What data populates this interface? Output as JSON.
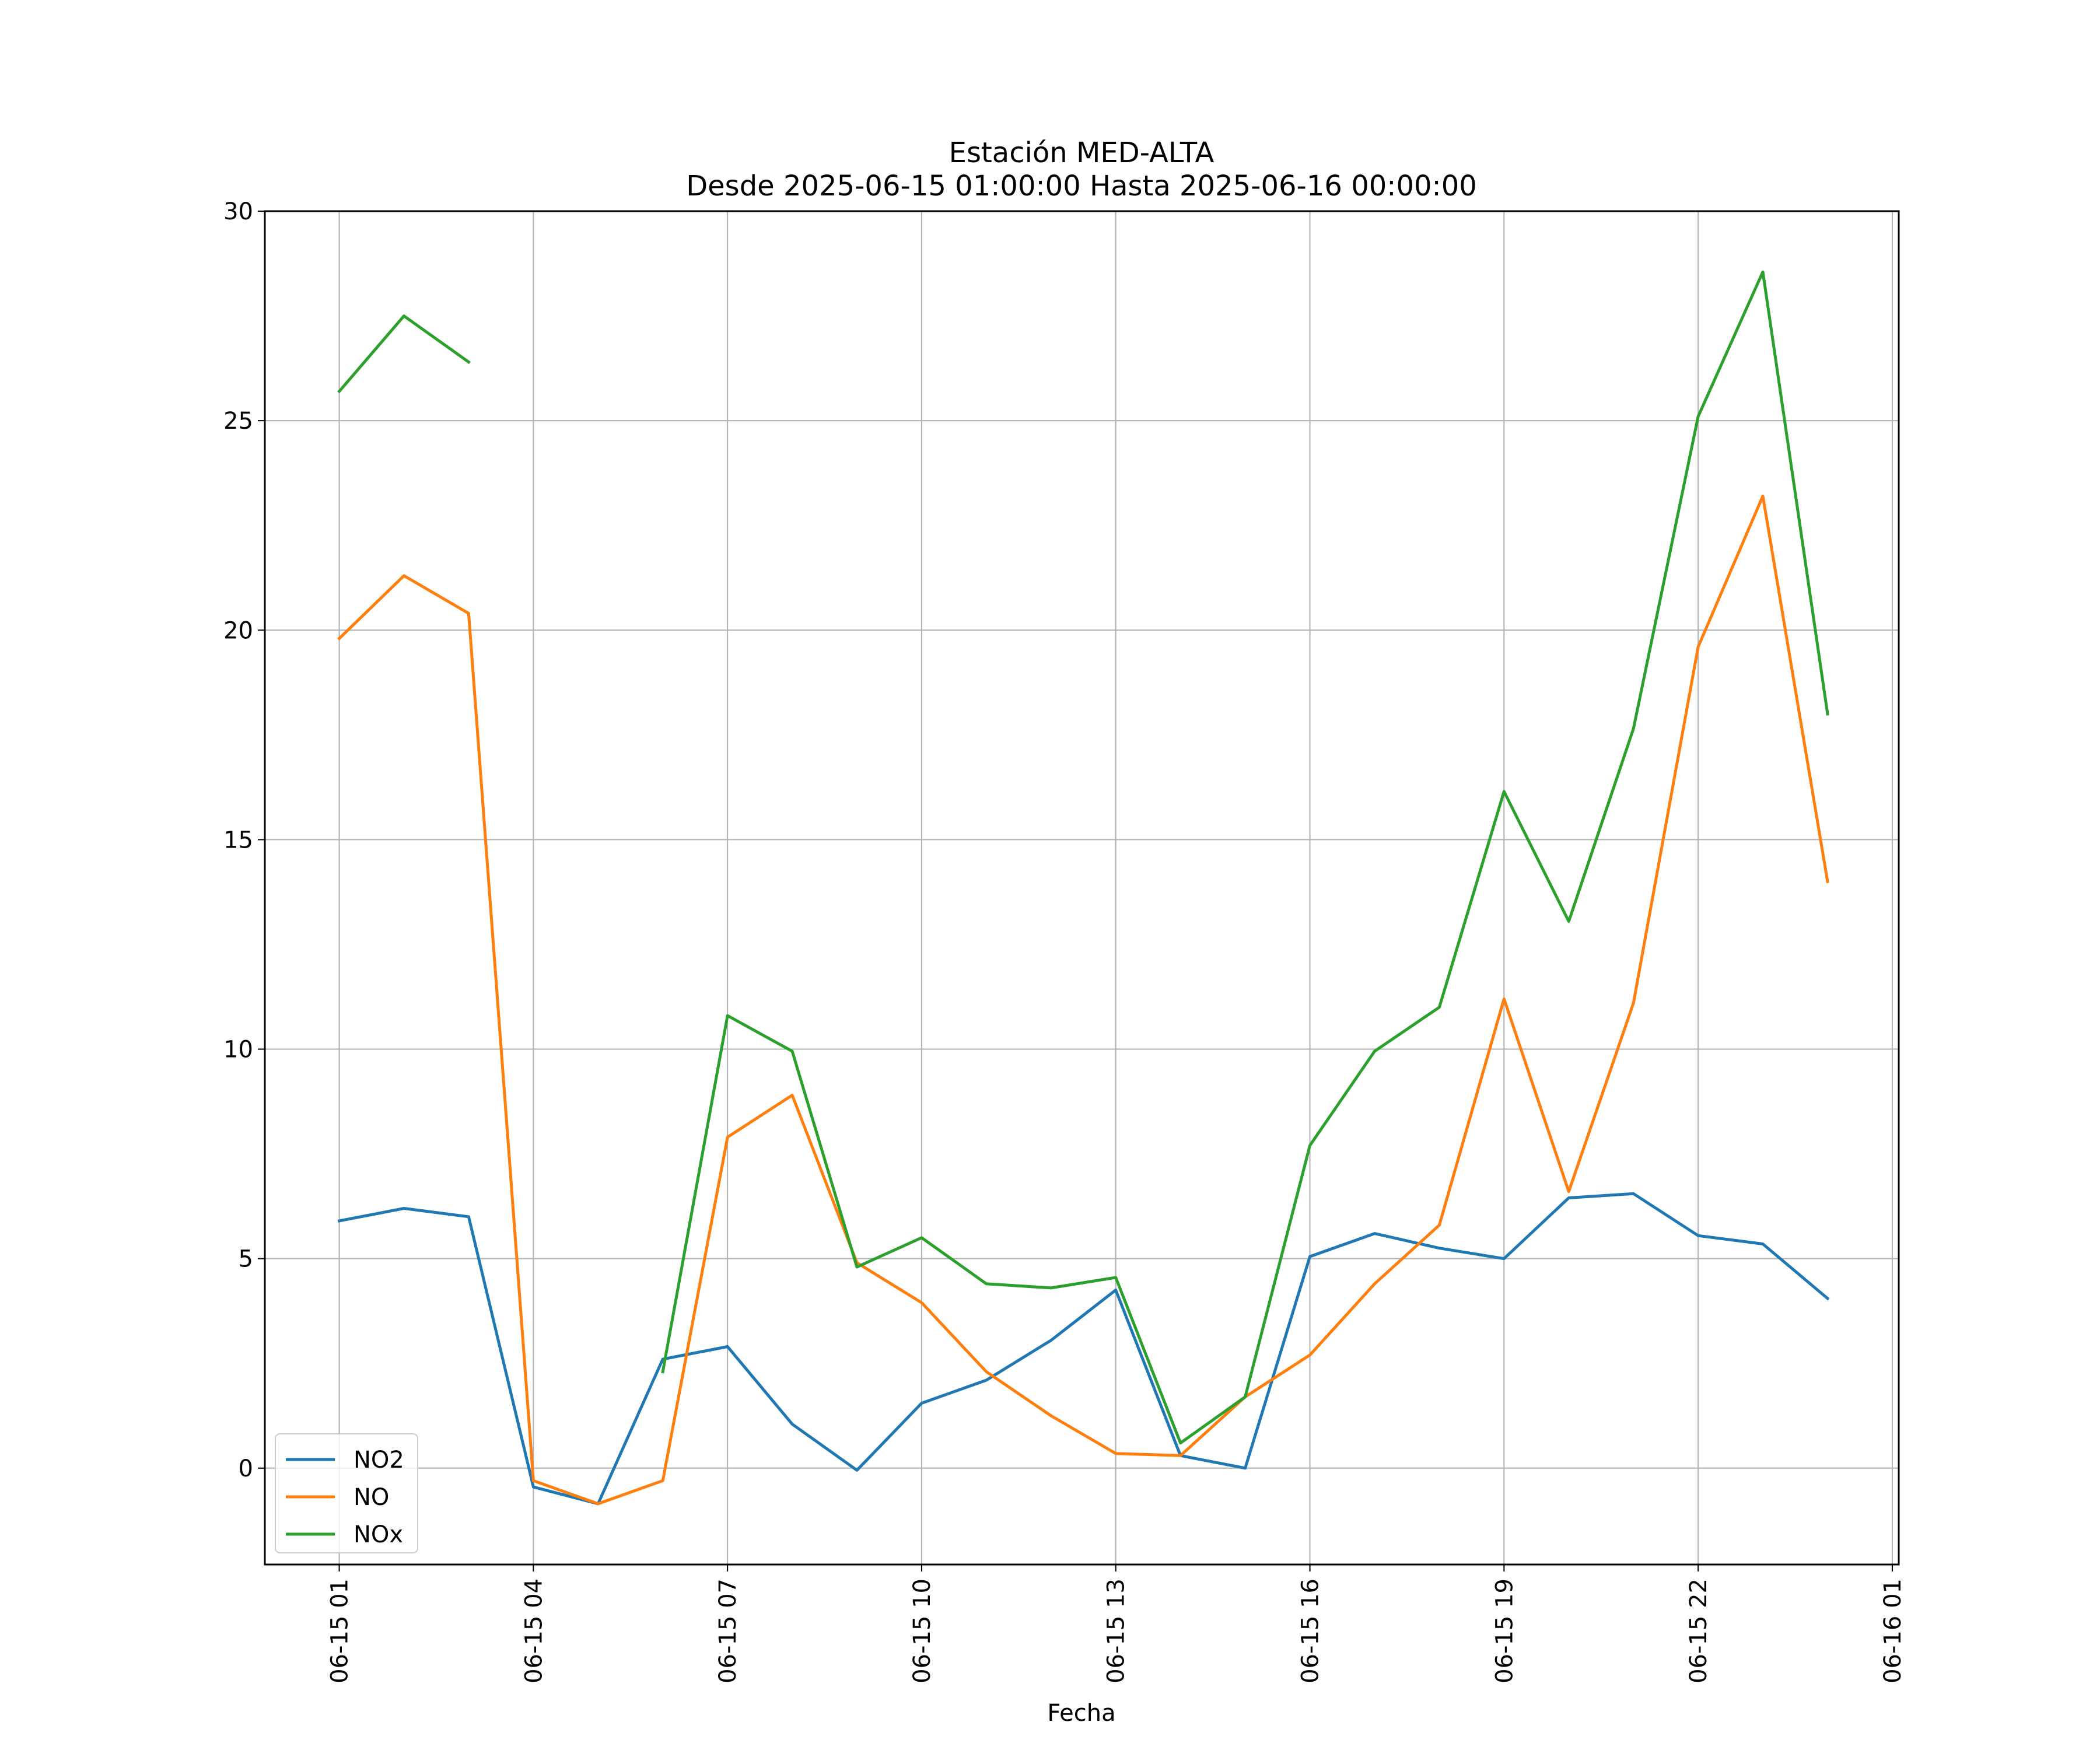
{
  "chart_data": {
    "type": "line",
    "title": "Estación MED-ALTA",
    "subtitle": "Desde 2025-06-15 01:00:00 Hasta 2025-06-16 00:00:00",
    "xlabel": "Fecha",
    "ylabel": "",
    "ylim": [
      -2.3,
      30
    ],
    "yticks": [
      0,
      5,
      10,
      15,
      20,
      25,
      30
    ],
    "xlim": [
      "2025-06-14 23:51",
      "2025-06-16 01:06"
    ],
    "xticks": [
      "2025-06-15 01:00",
      "2025-06-15 04:00",
      "2025-06-15 07:00",
      "2025-06-15 10:00",
      "2025-06-15 13:00",
      "2025-06-15 16:00",
      "2025-06-15 19:00",
      "2025-06-15 22:00",
      "2025-06-16 01:00"
    ],
    "xtick_labels": [
      "06-15 01",
      "06-15 04",
      "06-15 07",
      "06-15 10",
      "06-15 13",
      "06-15 16",
      "06-15 19",
      "06-15 22",
      "06-16 01"
    ],
    "grid": true,
    "legend_position": "lower-left",
    "x": [
      "2025-06-15 01:00",
      "2025-06-15 02:00",
      "2025-06-15 03:00",
      "2025-06-15 04:00",
      "2025-06-15 05:00",
      "2025-06-15 06:00",
      "2025-06-15 07:00",
      "2025-06-15 08:00",
      "2025-06-15 09:00",
      "2025-06-15 10:00",
      "2025-06-15 11:00",
      "2025-06-15 12:00",
      "2025-06-15 13:00",
      "2025-06-15 14:00",
      "2025-06-15 15:00",
      "2025-06-15 16:00",
      "2025-06-15 17:00",
      "2025-06-15 18:00",
      "2025-06-15 19:00",
      "2025-06-15 20:00",
      "2025-06-15 21:00",
      "2025-06-15 22:00",
      "2025-06-15 23:00",
      "2025-06-16 00:00"
    ],
    "series": [
      {
        "name": "NO2",
        "color": "#1f77b4",
        "values": [
          5.9,
          6.2,
          6.0,
          -0.45,
          -0.85,
          2.6,
          2.9,
          1.05,
          -0.05,
          1.55,
          2.1,
          3.05,
          4.25,
          0.3,
          0.0,
          5.05,
          5.6,
          5.25,
          5.0,
          6.45,
          6.55,
          5.55,
          5.35,
          4.05
        ]
      },
      {
        "name": "NO",
        "color": "#ff7f0e",
        "values": [
          19.8,
          21.3,
          20.4,
          -0.3,
          -0.85,
          -0.3,
          7.9,
          8.9,
          4.9,
          3.95,
          2.3,
          1.25,
          0.35,
          0.3,
          1.7,
          2.7,
          4.4,
          5.8,
          11.2,
          6.6,
          11.1,
          19.6,
          23.2,
          14.0
        ]
      },
      {
        "name": "NOx",
        "color": "#2ca02c",
        "values": [
          25.7,
          27.5,
          26.4,
          null,
          null,
          2.3,
          10.8,
          9.95,
          4.8,
          5.5,
          4.4,
          4.3,
          4.55,
          0.6,
          1.7,
          7.7,
          9.95,
          11.0,
          16.15,
          13.05,
          17.65,
          25.1,
          28.55,
          18.0
        ]
      }
    ]
  }
}
